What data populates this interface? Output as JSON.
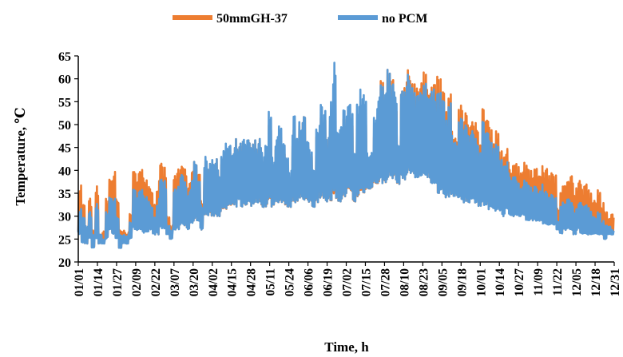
{
  "chart_data": {
    "type": "line",
    "xlabel": "Time, h",
    "ylabel": "Temperature, ℃",
    "ylim": [
      20,
      65
    ],
    "yticks": [
      20,
      25,
      30,
      35,
      40,
      45,
      50,
      55,
      60,
      65
    ],
    "grid": false,
    "legend_position": "top",
    "xtick_labels": [
      "01/01",
      "01/14",
      "01/27",
      "02/09",
      "02/22",
      "03/07",
      "03/20",
      "04/02",
      "04/15",
      "04/28",
      "05/11",
      "05/24",
      "06/06",
      "06/19",
      "07/02",
      "07/15",
      "07/28",
      "08/10",
      "08/23",
      "09/05",
      "09/18",
      "10/01",
      "10/14",
      "10/27",
      "11/09",
      "11/22",
      "12/05",
      "12/18",
      "12/31"
    ],
    "x_day_of_year": [
      1,
      14,
      27,
      40,
      53,
      66,
      79,
      92,
      105,
      118,
      131,
      144,
      157,
      170,
      183,
      196,
      209,
      222,
      235,
      248,
      261,
      274,
      287,
      300,
      313,
      326,
      339,
      352,
      365
    ],
    "series": [
      {
        "name": "50mmGH-37",
        "color": "#ED7D31",
        "daily_max": [
          37.5,
          33,
          28,
          34,
          27,
          37,
          26,
          27,
          34,
          39.5,
          40,
          34,
          27,
          27,
          26.5,
          31,
          40,
          40.5,
          40.5,
          40.5,
          39,
          37,
          33,
          38,
          41.5,
          41,
          30,
          28,
          39,
          41,
          42,
          41,
          38,
          40,
          42,
          42,
          34,
          42,
          42,
          42,
          44,
          40,
          43,
          44,
          45,
          42,
          47,
          46,
          46,
          46,
          47,
          46,
          47,
          48,
          42,
          44,
          50,
          43,
          47,
          47,
          44,
          41,
          38,
          49,
          47,
          52,
          53,
          46,
          44,
          40,
          50,
          52,
          51,
          48,
          52,
          52,
          48,
          49,
          52,
          53,
          52,
          43,
          51,
          51,
          53,
          42,
          43,
          49,
          51,
          61,
          55,
          62,
          61,
          56,
          44,
          58,
          60,
          62,
          62,
          60,
          61,
          62,
          61,
          62,
          60,
          61,
          60,
          58,
          54,
          57,
          50,
          48,
          55,
          53,
          55,
          50,
          51,
          53,
          48,
          55,
          53,
          50,
          46,
          49,
          45,
          43,
          45,
          42,
          43,
          42,
          41,
          42,
          42,
          41,
          41,
          40.5,
          41,
          41,
          40.5,
          40,
          39,
          32,
          38,
          39,
          38,
          39,
          37,
          38,
          37,
          38,
          36,
          35,
          34,
          36,
          33,
          31,
          30,
          30.5
        ],
        "daily_min": [
          26,
          24,
          24,
          25,
          23,
          25,
          24,
          24,
          25,
          27,
          26,
          25,
          23,
          24,
          24,
          25,
          27,
          27,
          27,
          26,
          26,
          27,
          26,
          26,
          27,
          27,
          26,
          25,
          27,
          27,
          28,
          28,
          27,
          28,
          29,
          29,
          27,
          30,
          30,
          30,
          30,
          30,
          31,
          31,
          32,
          32,
          32,
          33,
          32,
          32,
          33,
          32,
          33,
          33,
          32,
          32,
          33,
          32,
          33,
          33,
          33,
          32,
          32,
          33,
          33,
          34,
          33,
          33,
          33,
          32,
          33,
          34,
          34,
          33,
          33,
          34,
          33,
          33,
          34,
          35,
          35,
          33,
          34,
          35,
          35,
          36,
          36,
          37,
          37,
          37,
          37,
          38,
          38,
          38,
          37,
          38,
          38,
          39,
          39,
          38,
          38,
          38,
          38,
          38,
          37,
          36,
          35,
          35,
          34,
          34,
          34,
          34,
          34,
          33,
          33,
          33,
          33,
          33,
          32,
          32,
          32,
          31,
          31,
          31,
          31,
          30,
          31,
          30,
          30,
          30,
          30,
          30,
          29,
          29,
          29,
          29,
          29,
          28,
          28,
          28,
          28,
          27,
          26,
          27,
          27,
          27,
          26,
          27,
          26,
          26,
          26,
          26,
          26,
          26,
          26,
          25,
          26,
          26,
          26
        ]
      },
      {
        "name": "no PCM",
        "color": "#5B9BD5",
        "daily_max": [
          32,
          30,
          28,
          31,
          26,
          33,
          26,
          25,
          31,
          35,
          34,
          30,
          26,
          26,
          26,
          29,
          36,
          36,
          36,
          36,
          35,
          33,
          30,
          34,
          38,
          38,
          28,
          27,
          36,
          37,
          40,
          38,
          36,
          38,
          42,
          40,
          33,
          43,
          42,
          44,
          44,
          40,
          45,
          46,
          47,
          44,
          47,
          46,
          47,
          47,
          47,
          46,
          47,
          48,
          44,
          46,
          53,
          44,
          48,
          50,
          46,
          43,
          40,
          52,
          49,
          53,
          53,
          47,
          45,
          41,
          52,
          55,
          53,
          48,
          56,
          64.5,
          49,
          50,
          54,
          56,
          55,
          45,
          56,
          58,
          59,
          44,
          45,
          54,
          58,
          60,
          57,
          62,
          60,
          58,
          46,
          58,
          59,
          61,
          61,
          58,
          60,
          59,
          59,
          61,
          59,
          57,
          57,
          56,
          52,
          55,
          49,
          47,
          52,
          51,
          52,
          48,
          49,
          49,
          46,
          52,
          50,
          47,
          45,
          46,
          43,
          41,
          42,
          40,
          40,
          38,
          37,
          38,
          38,
          37,
          37,
          36,
          37,
          36,
          35,
          35,
          34,
          29,
          34,
          34,
          34,
          33,
          32,
          33,
          33,
          33,
          32,
          31,
          30,
          31,
          29,
          28,
          28,
          27
        ],
        "daily_min": [
          26,
          24,
          24,
          25,
          23,
          25,
          24,
          24,
          25,
          27,
          26,
          25,
          23,
          24,
          24,
          25,
          27,
          27,
          27,
          26,
          26,
          27,
          26,
          26,
          27,
          27,
          26,
          25,
          27,
          27,
          28,
          28,
          27,
          28,
          29,
          29,
          27,
          30,
          30,
          30,
          30,
          30,
          31,
          31,
          32,
          32,
          32,
          33,
          32,
          32,
          33,
          32,
          33,
          33,
          32,
          32,
          33,
          32,
          33,
          33,
          33,
          32,
          32,
          33,
          33,
          34,
          33,
          33,
          33,
          32,
          33,
          34,
          34,
          33,
          33,
          34,
          33,
          33,
          34,
          35,
          35,
          33,
          34,
          35,
          35,
          36,
          36,
          37,
          37,
          37,
          37,
          38,
          38,
          38,
          37,
          38,
          38,
          39,
          39,
          38,
          38,
          38,
          38,
          38,
          37,
          36,
          35,
          35,
          34,
          34,
          34,
          34,
          34,
          33,
          33,
          33,
          33,
          33,
          32,
          32,
          32,
          31,
          31,
          31,
          31,
          30,
          31,
          30,
          30,
          30,
          30,
          30,
          29,
          29,
          29,
          29,
          29,
          28,
          28,
          28,
          28,
          27,
          26,
          27,
          27,
          27,
          26,
          27,
          26,
          26,
          26,
          26,
          26,
          26,
          26,
          25,
          26,
          26,
          26
        ]
      }
    ]
  }
}
